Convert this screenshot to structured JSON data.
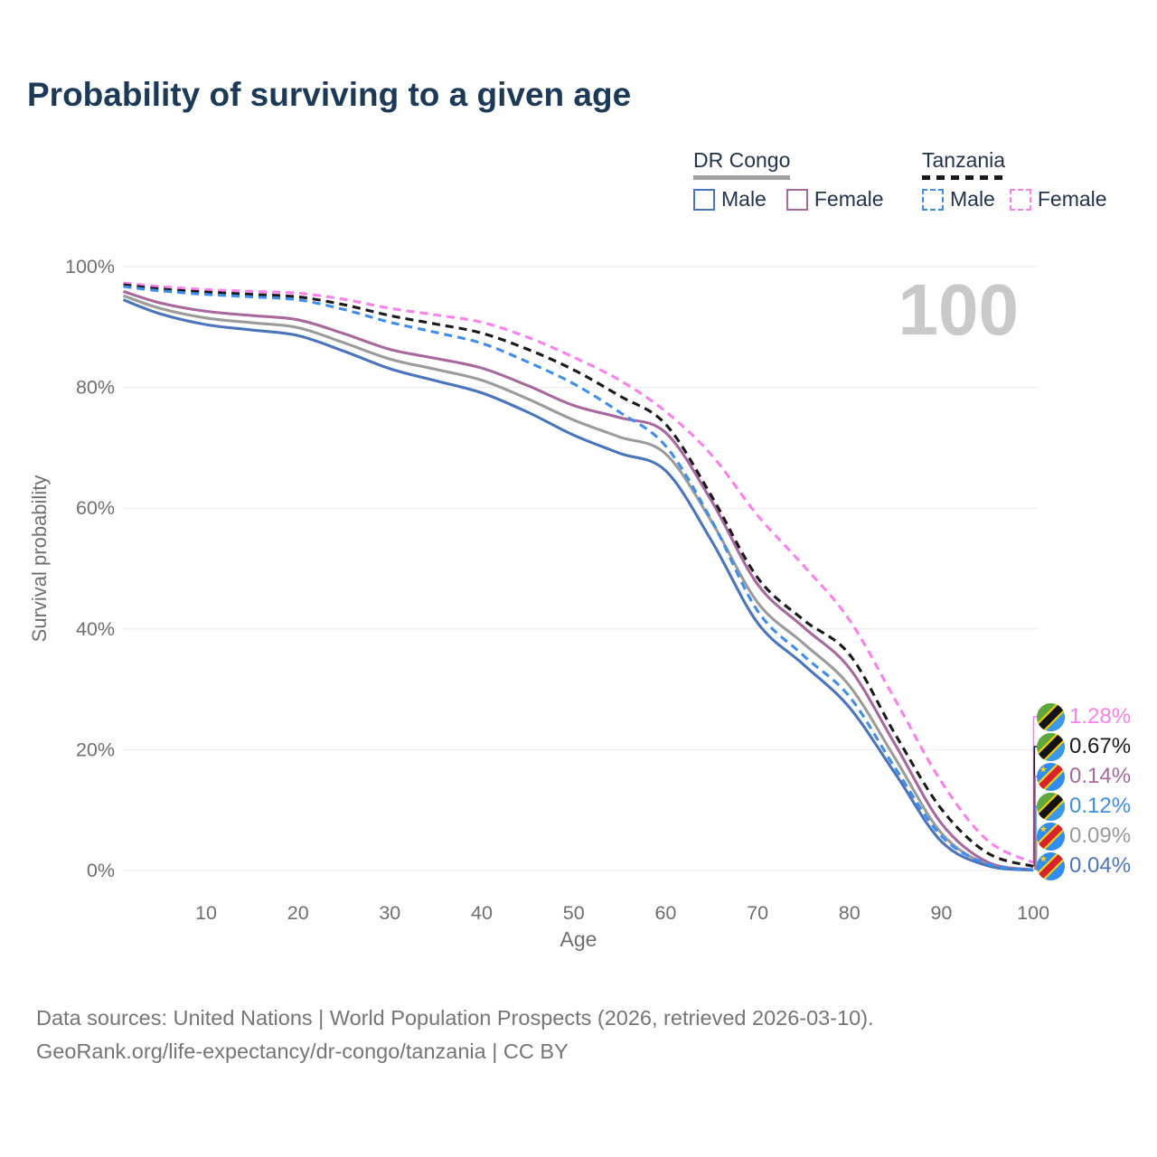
{
  "title": "Probability of surviving to a given age",
  "watermark": "100",
  "legend": {
    "groups": [
      {
        "country": "DR Congo",
        "line_style": "solid",
        "rule_color": "#9e9e9e",
        "items": [
          {
            "label": "Male",
            "color": "#4a74bd"
          },
          {
            "label": "Female",
            "color": "#a8689e"
          }
        ]
      },
      {
        "country": "Tanzania",
        "line_style": "dashed",
        "rule_color": "#1a1a1a",
        "items": [
          {
            "label": "Male",
            "color": "#3f8ded"
          },
          {
            "label": "Female",
            "color": "#fc80ec"
          }
        ]
      }
    ]
  },
  "chart_data": {
    "type": "line",
    "title": "Probability of surviving to a given age",
    "xlabel": "Age",
    "ylabel": "Survival probability",
    "xlim": [
      1,
      100
    ],
    "ylim": [
      0,
      100
    ],
    "x_ticks": [
      10,
      20,
      30,
      40,
      50,
      60,
      70,
      80,
      90,
      100
    ],
    "y_ticks": [
      0,
      20,
      40,
      60,
      80,
      100
    ],
    "y_tick_suffix": "%",
    "grid": "horizontal",
    "legend_position": "top-right",
    "age_annotation": "100",
    "x": [
      1,
      5,
      10,
      15,
      20,
      25,
      30,
      35,
      40,
      45,
      50,
      55,
      60,
      65,
      70,
      75,
      80,
      85,
      90,
      95,
      100
    ],
    "series": [
      {
        "name": "Tanzania Female",
        "country": "Tanzania",
        "sex": "Female",
        "style": "dashed",
        "color": "#fc80ec",
        "end_label": "1.28%",
        "values": [
          97.3,
          96.7,
          96.2,
          95.9,
          95.6,
          94.6,
          93.1,
          92.0,
          90.8,
          88.3,
          85.0,
          81.2,
          76.0,
          68.8,
          58.8,
          50.5,
          41.5,
          28.2,
          14.7,
          5.0,
          1.28
        ]
      },
      {
        "name": "Tanzania Both sexes",
        "country": "Tanzania",
        "sex": "Both",
        "style": "dashed",
        "color": "#1a1a1a",
        "end_label": "0.67%",
        "values": [
          97.0,
          96.3,
          95.8,
          95.4,
          95.0,
          93.7,
          91.9,
          90.5,
          89.0,
          86.3,
          82.9,
          78.6,
          73.9,
          62.0,
          48.5,
          41.5,
          35.8,
          22.5,
          10.2,
          2.9,
          0.67
        ]
      },
      {
        "name": "DR Congo Female",
        "country": "DR Congo",
        "sex": "Female",
        "style": "solid",
        "color": "#a8689e",
        "end_label": "0.14%",
        "values": [
          95.9,
          94.0,
          92.6,
          91.9,
          91.2,
          88.9,
          86.3,
          84.8,
          83.2,
          80.3,
          77.0,
          75.0,
          72.5,
          61.2,
          47.4,
          40.3,
          33.5,
          20.8,
          7.8,
          1.4,
          0.14
        ]
      },
      {
        "name": "Tanzania Male",
        "country": "Tanzania",
        "sex": "Male",
        "style": "dashed",
        "color": "#3f8ded",
        "end_label": "0.12%",
        "values": [
          96.7,
          96.0,
          95.4,
          95.0,
          94.5,
          92.9,
          90.8,
          89.1,
          87.3,
          84.2,
          80.6,
          75.9,
          70.3,
          58.0,
          43.0,
          35.6,
          28.8,
          16.9,
          5.7,
          1.1,
          0.12
        ]
      },
      {
        "name": "DR Congo Both sexes",
        "country": "DR Congo",
        "sex": "Both",
        "style": "solid",
        "color": "#9b9b9b",
        "end_label": "0.09%",
        "values": [
          95.2,
          93.1,
          91.5,
          90.7,
          89.9,
          87.4,
          84.7,
          83.0,
          81.2,
          78.1,
          74.6,
          71.8,
          69.0,
          57.8,
          44.4,
          37.6,
          30.6,
          18.5,
          6.2,
          1.0,
          0.09
        ]
      },
      {
        "name": "DR Congo Male",
        "country": "DR Congo",
        "sex": "Male",
        "style": "solid",
        "color": "#4a74bd",
        "end_label": "0.04%",
        "values": [
          94.5,
          92.2,
          90.4,
          89.5,
          88.6,
          86.0,
          83.1,
          81.1,
          79.1,
          75.9,
          72.1,
          69.1,
          66.2,
          54.6,
          41.0,
          34.1,
          27.0,
          16.0,
          4.8,
          0.8,
          0.04
        ]
      }
    ]
  },
  "footer": {
    "line1": "Data sources: United Nations | World Population Prospects (2026, retrieved 2026-03-10).",
    "line2": "GeoRank.org/life-expectancy/dr-congo/tanzania | CC BY"
  }
}
